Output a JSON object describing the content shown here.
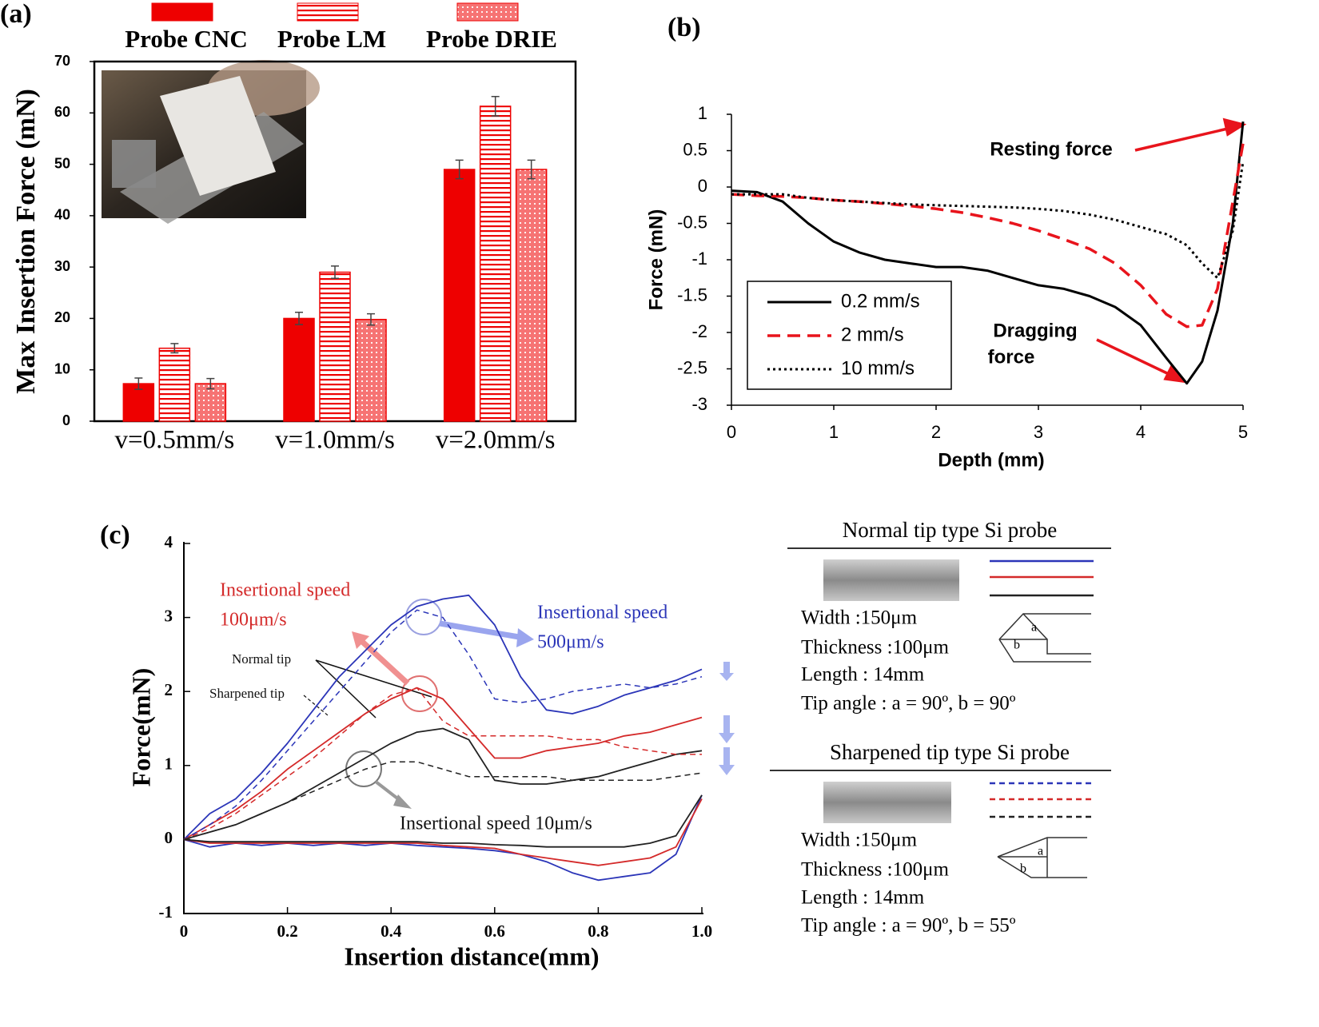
{
  "panel_labels": [
    "(a)",
    "(b)",
    "(c)"
  ],
  "chart_data": [
    {
      "type": "bar",
      "ylabel": "Max Insertion Force (mN)",
      "categories": [
        "v=0.5mm/s",
        "v=1.0mm/s",
        "v=2.0mm/s"
      ],
      "series": [
        {
          "name": "Probe CNC",
          "color": "#ee0000",
          "pattern": "solid",
          "values": [
            7.3,
            20,
            49
          ],
          "errors": [
            1.1,
            1.2,
            1.8
          ]
        },
        {
          "name": "Probe LM",
          "color": "#ee0000",
          "pattern": "horizontal-stripes",
          "values": [
            14.2,
            29,
            61.3
          ],
          "errors": [
            0.9,
            1.2,
            1.9
          ]
        },
        {
          "name": "Probe DRIE",
          "color": "#ee0000",
          "pattern": "dots",
          "values": [
            7.3,
            19.8,
            49
          ],
          "errors": [
            1.0,
            1.1,
            1.8
          ]
        }
      ],
      "ylim": [
        0,
        70
      ],
      "yticks": [
        0,
        10,
        20,
        30,
        40,
        50,
        60,
        70
      ],
      "legend": "top"
    },
    {
      "type": "line",
      "xlabel": "Depth (mm)",
      "ylabel": "Force (mN)",
      "x": [
        0,
        0.25,
        0.5,
        0.75,
        1,
        1.25,
        1.5,
        1.75,
        2,
        2.25,
        2.5,
        2.75,
        3,
        3.25,
        3.5,
        3.75,
        4,
        4.25,
        4.45,
        4.6,
        4.75,
        4.9,
        5
      ],
      "series": [
        {
          "name": "0.2 mm/s",
          "color": "#000000",
          "dash": "solid",
          "values": [
            -0.05,
            -0.07,
            -0.2,
            -0.5,
            -0.75,
            -0.9,
            -1.0,
            -1.05,
            -1.1,
            -1.1,
            -1.15,
            -1.25,
            -1.35,
            -1.4,
            -1.5,
            -1.65,
            -1.9,
            -2.35,
            -2.7,
            -2.4,
            -1.7,
            -0.5,
            0.9
          ]
        },
        {
          "name": "2 mm/s",
          "color": "#e8141c",
          "dash": "dashed",
          "values": [
            -0.1,
            -0.12,
            -0.13,
            -0.15,
            -0.18,
            -0.2,
            -0.23,
            -0.26,
            -0.3,
            -0.35,
            -0.42,
            -0.5,
            -0.6,
            -0.72,
            -0.85,
            -1.05,
            -1.35,
            -1.75,
            -1.92,
            -1.9,
            -1.4,
            -0.2,
            0.6
          ]
        },
        {
          "name": "10 mm/s",
          "color": "#000000",
          "dash": "dotted",
          "values": [
            -0.1,
            -0.1,
            -0.1,
            -0.15,
            -0.18,
            -0.2,
            -0.22,
            -0.24,
            -0.25,
            -0.26,
            -0.27,
            -0.28,
            -0.3,
            -0.33,
            -0.38,
            -0.45,
            -0.55,
            -0.65,
            -0.8,
            -1.05,
            -1.25,
            -0.6,
            0.35
          ]
        }
      ],
      "xlim": [
        0,
        5
      ],
      "ylim": [
        -3,
        1
      ],
      "xticks": [
        0,
        1,
        2,
        3,
        4,
        5
      ],
      "yticks": [
        -3,
        -2.5,
        -2,
        -1.5,
        -1,
        -0.5,
        0,
        0.5,
        1
      ],
      "legend": "lower left",
      "annotations": [
        {
          "text": [
            "Resting force"
          ],
          "color": "#000000"
        },
        {
          "text": [
            "Dragging",
            "force"
          ],
          "color": "#000000"
        }
      ]
    },
    {
      "type": "line",
      "xlabel": "Insertion distance(mm)",
      "ylabel": "Force(mN)",
      "x": [
        0,
        0.05,
        0.1,
        0.15,
        0.2,
        0.25,
        0.3,
        0.35,
        0.4,
        0.45,
        0.5,
        0.55,
        0.6,
        0.65,
        0.7,
        0.75,
        0.8,
        0.85,
        0.9,
        0.95,
        1.0
      ],
      "series": [
        {
          "color": "#2b35b8",
          "dash": "solid",
          "values": [
            0,
            0.35,
            0.55,
            0.9,
            1.3,
            1.75,
            2.2,
            2.55,
            2.9,
            3.15,
            3.25,
            3.3,
            2.9,
            2.2,
            1.75,
            1.7,
            1.8,
            1.95,
            2.05,
            2.15,
            2.3
          ]
        },
        {
          "color": "#d42a2a",
          "dash": "solid",
          "values": [
            0,
            0.2,
            0.4,
            0.65,
            0.95,
            1.2,
            1.45,
            1.7,
            1.9,
            2.05,
            1.9,
            1.5,
            1.1,
            1.1,
            1.2,
            1.25,
            1.3,
            1.4,
            1.45,
            1.55,
            1.65
          ]
        },
        {
          "color": "#222222",
          "dash": "solid",
          "values": [
            0,
            0.1,
            0.2,
            0.35,
            0.5,
            0.7,
            0.9,
            1.1,
            1.3,
            1.45,
            1.5,
            1.35,
            0.8,
            0.75,
            0.75,
            0.8,
            0.85,
            0.95,
            1.05,
            1.15,
            1.2
          ]
        },
        {
          "color": "#2b35b8",
          "dash": "dashed",
          "values": [
            0,
            0.2,
            0.45,
            0.8,
            1.2,
            1.6,
            2.0,
            2.4,
            2.8,
            3.1,
            3.0,
            2.5,
            1.9,
            1.85,
            1.9,
            2.0,
            2.05,
            2.1,
            2.05,
            2.1,
            2.2
          ]
        },
        {
          "color": "#d42a2a",
          "dash": "dashed",
          "values": [
            0,
            0.15,
            0.35,
            0.6,
            0.85,
            1.1,
            1.4,
            1.7,
            1.95,
            2.05,
            1.6,
            1.4,
            1.4,
            1.4,
            1.4,
            1.35,
            1.35,
            1.25,
            1.2,
            1.15,
            1.15
          ]
        },
        {
          "color": "#222222",
          "dash": "dashed",
          "values": [
            0,
            0.1,
            0.2,
            0.35,
            0.5,
            0.65,
            0.8,
            0.95,
            1.05,
            1.05,
            0.95,
            0.85,
            0.85,
            0.85,
            0.85,
            0.8,
            0.8,
            0.8,
            0.8,
            0.85,
            0.9
          ]
        },
        {
          "color": "#2b35b8",
          "dash": "solid",
          "values": [
            0,
            -0.1,
            -0.05,
            -0.08,
            -0.05,
            -0.08,
            -0.05,
            -0.08,
            -0.05,
            -0.08,
            -0.1,
            -0.12,
            -0.15,
            -0.2,
            -0.3,
            -0.45,
            -0.55,
            -0.5,
            -0.45,
            -0.2,
            0.6
          ]
        },
        {
          "color": "#d42a2a",
          "dash": "solid",
          "values": [
            0,
            -0.05,
            -0.05,
            -0.05,
            -0.05,
            -0.05,
            -0.05,
            -0.05,
            -0.05,
            -0.05,
            -0.08,
            -0.1,
            -0.12,
            -0.2,
            -0.25,
            -0.3,
            -0.35,
            -0.3,
            -0.25,
            -0.1,
            0.55
          ]
        },
        {
          "color": "#222222",
          "dash": "solid",
          "values": [
            0,
            -0.03,
            -0.03,
            -0.03,
            -0.03,
            -0.03,
            -0.03,
            -0.03,
            -0.03,
            -0.03,
            -0.05,
            -0.05,
            -0.07,
            -0.08,
            -0.1,
            -0.1,
            -0.1,
            -0.1,
            -0.05,
            0.05,
            0.6
          ]
        }
      ],
      "xlim": [
        0,
        1
      ],
      "ylim": [
        -1,
        4
      ],
      "xticks": [
        0,
        0.2,
        0.4,
        0.6,
        0.8,
        {
          "value": 1,
          "label": "1.0"
        }
      ],
      "yticks": [
        -1,
        0,
        1,
        2,
        3,
        4
      ],
      "annotations": [
        {
          "text": [
            "Insertional speed",
            "100μm/s"
          ],
          "color": "#d42a2a"
        },
        {
          "text": [
            "Insertional speed",
            "500μm/s"
          ],
          "color": "#2b35b8"
        },
        {
          "text": [
            "Insertional speed 10μm/s"
          ],
          "color": "#111111"
        },
        {
          "text": [
            "Normal tip"
          ],
          "color": "#111111"
        },
        {
          "text": [
            "Sharpened tip"
          ],
          "color": "#111111"
        }
      ]
    }
  ],
  "probe_specs": [
    {
      "title": "Normal tip type Si probe",
      "lines": [
        "Width :150μm",
        "Thickness :100μm",
        "Length : 14mm",
        "Tip angle : a = 90º, b = 90º"
      ],
      "angle_labels": [
        "a",
        "b"
      ]
    },
    {
      "title": "Sharpened tip type Si probe",
      "lines": [
        "Width :150μm",
        "Thickness :100μm",
        "Length : 14mm",
        "Tip angle : a = 90º, b = 55º"
      ],
      "angle_labels": [
        "a",
        "b"
      ]
    }
  ]
}
